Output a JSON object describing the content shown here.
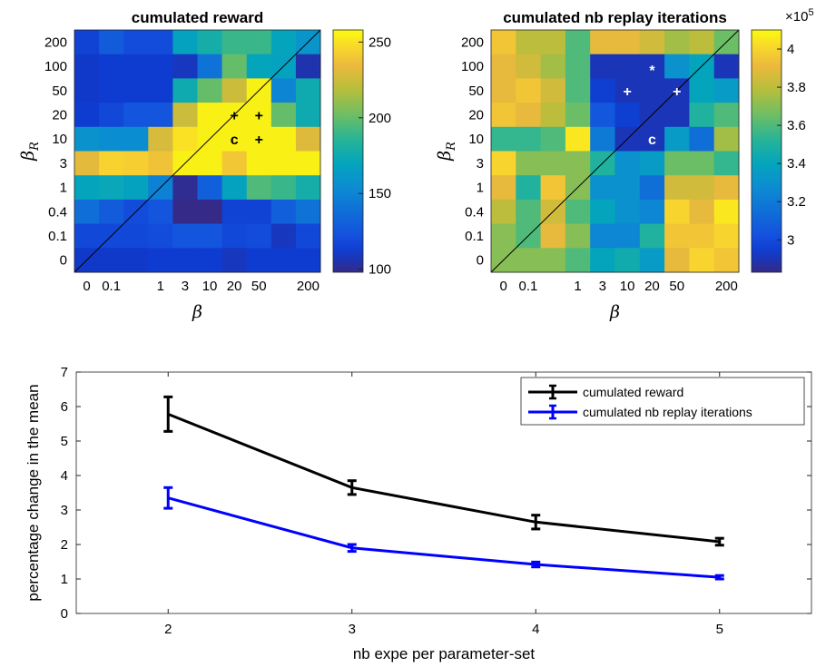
{
  "chart_data": [
    {
      "type": "heatmap",
      "title": "cumulated reward",
      "xlabel": "β",
      "ylabel_main": "β",
      "ylabel_sub": "R",
      "x_ticks": [
        "0",
        "0.1",
        "1",
        "3",
        "10",
        "20",
        "50",
        "200"
      ],
      "y_ticks": [
        "200",
        "100",
        "50",
        "20",
        "10",
        "3",
        "1",
        "0.4",
        "0.1",
        "0"
      ],
      "colorbar": {
        "min": 98,
        "max": 258,
        "ticks": [
          "100",
          "150",
          "200",
          "250"
        ],
        "tick_values": [
          100,
          150,
          200,
          250
        ],
        "colormap": "parula"
      },
      "values": [
        [
          115,
          128,
          120,
          120,
          168,
          178,
          190,
          190,
          170,
          160
        ],
        [
          110,
          112,
          112,
          112,
          108,
          140,
          200,
          170,
          168,
          105
        ],
        [
          110,
          112,
          112,
          112,
          175,
          200,
          225,
          255,
          150,
          175
        ],
        [
          112,
          118,
          125,
          125,
          225,
          255,
          255,
          255,
          200,
          175
        ],
        [
          158,
          155,
          155,
          228,
          250,
          255,
          255,
          255,
          255,
          230
        ],
        [
          232,
          245,
          243,
          238,
          255,
          255,
          240,
          255,
          255,
          255
        ],
        [
          170,
          172,
          168,
          148,
          100,
          130,
          168,
          195,
          190,
          178
        ],
        [
          138,
          128,
          120,
          125,
          98,
          98,
          115,
          115,
          130,
          140
        ],
        [
          118,
          118,
          118,
          120,
          125,
          125,
          118,
          120,
          108,
          118
        ],
        [
          110,
          110,
          110,
          112,
          112,
          112,
          108,
          112,
          112,
          112
        ]
      ],
      "markers": [
        {
          "row": 3,
          "col": 6,
          "symbol": "+"
        },
        {
          "row": 3,
          "col": 7,
          "symbol": "+"
        },
        {
          "row": 4,
          "col": 6,
          "symbol": "c"
        },
        {
          "row": 4,
          "col": 7,
          "symbol": "+"
        }
      ],
      "marker_color": "#000000"
    },
    {
      "type": "heatmap",
      "title": "cumulated nb replay iterations",
      "xlabel": "β",
      "ylabel_main": "β",
      "ylabel_sub": "R",
      "x_ticks": [
        "0",
        "0.1",
        "1",
        "3",
        "10",
        "20",
        "50",
        "200"
      ],
      "y_ticks": [
        "200",
        "100",
        "50",
        "20",
        "10",
        "3",
        "1",
        "0.4",
        "0.1",
        "0"
      ],
      "colorbar": {
        "min": 2.83,
        "max": 4.1,
        "ticks": [
          "3",
          "3.2",
          "3.4",
          "3.6",
          "3.8",
          "4"
        ],
        "tick_values": [
          3.0,
          3.2,
          3.4,
          3.6,
          3.8,
          4.0
        ],
        "multiplier": "×10",
        "exponent": "5",
        "colormap": "parula"
      },
      "values": [
        [
          3.95,
          3.8,
          3.8,
          3.6,
          3.9,
          3.9,
          3.85,
          3.75,
          3.8,
          3.65
        ],
        [
          3.9,
          3.85,
          3.75,
          3.6,
          2.9,
          2.9,
          2.9,
          3.3,
          3.4,
          2.9
        ],
        [
          3.9,
          3.95,
          3.85,
          3.6,
          2.95,
          2.9,
          2.9,
          2.9,
          3.4,
          3.35
        ],
        [
          3.95,
          3.9,
          3.8,
          3.65,
          3.05,
          2.95,
          2.9,
          2.9,
          3.5,
          3.6
        ],
        [
          3.55,
          3.55,
          3.6,
          4.05,
          3.2,
          2.9,
          2.9,
          3.35,
          3.15,
          3.75
        ],
        [
          4.0,
          3.7,
          3.7,
          3.7,
          3.5,
          3.3,
          3.35,
          3.65,
          3.65,
          3.55
        ],
        [
          3.9,
          3.5,
          3.95,
          3.7,
          3.3,
          3.3,
          3.15,
          3.85,
          3.85,
          3.9
        ],
        [
          3.8,
          3.6,
          3.85,
          3.6,
          3.4,
          3.3,
          3.25,
          4.0,
          3.9,
          4.05
        ],
        [
          3.7,
          3.6,
          3.9,
          3.7,
          3.25,
          3.25,
          3.5,
          3.95,
          3.95,
          4.0
        ],
        [
          3.7,
          3.7,
          3.7,
          3.6,
          3.4,
          3.45,
          3.35,
          3.9,
          4.0,
          3.95
        ]
      ],
      "markers": [
        {
          "row": 1,
          "col": 6,
          "symbol": "*"
        },
        {
          "row": 2,
          "col": 5,
          "symbol": "+"
        },
        {
          "row": 2,
          "col": 7,
          "symbol": "+"
        },
        {
          "row": 4,
          "col": 6,
          "symbol": "c"
        }
      ],
      "marker_color": "#ffffff"
    },
    {
      "type": "line",
      "xlabel": "nb expe per parameter-set",
      "ylabel": "percentage change in the mean",
      "xlim": [
        1.5,
        5.5
      ],
      "ylim": [
        0,
        7
      ],
      "x_ticks": [
        2,
        3,
        4,
        5
      ],
      "y_ticks": [
        0,
        1,
        2,
        3,
        4,
        5,
        6,
        7
      ],
      "legend_position": "top-right",
      "series": [
        {
          "name": "cumulated reward",
          "color": "#000000",
          "x": [
            2,
            3,
            4,
            5
          ],
          "y": [
            5.78,
            3.65,
            2.65,
            2.08
          ],
          "err": [
            0.5,
            0.2,
            0.2,
            0.1
          ]
        },
        {
          "name": "cumulated nb replay iterations",
          "color": "#0000ff",
          "x": [
            2,
            3,
            4,
            5
          ],
          "y": [
            3.35,
            1.9,
            1.42,
            1.05
          ],
          "err": [
            0.3,
            0.1,
            0.07,
            0.05
          ]
        }
      ]
    }
  ]
}
